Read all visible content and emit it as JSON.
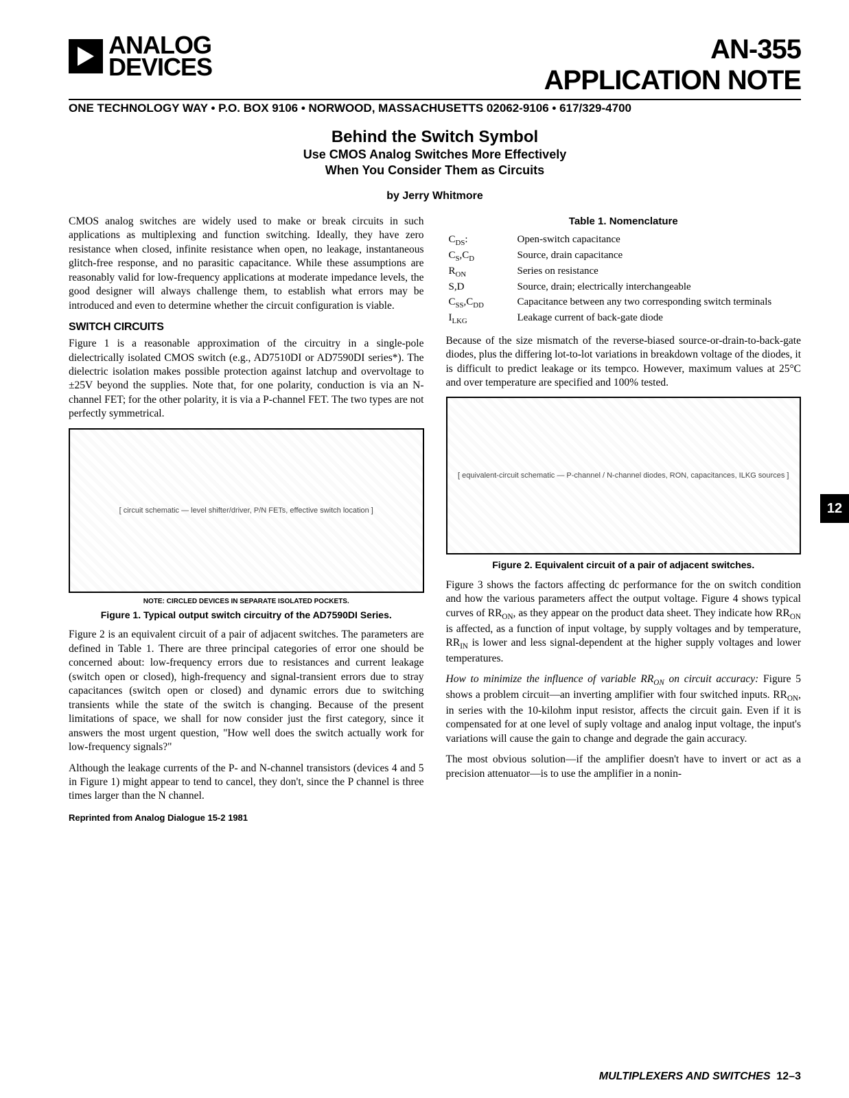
{
  "brand": {
    "line1": "ANALOG",
    "line2": "DEVICES"
  },
  "docid": {
    "an": "AN-355",
    "appnote": "APPLICATION NOTE"
  },
  "address": "ONE TECHNOLOGY WAY • P.O. BOX 9106 • NORWOOD, MASSACHUSETTS 02062-9106 • 617/329-4700",
  "title": {
    "main": "Behind the Switch Symbol",
    "sub1": "Use CMOS Analog Switches More Effectively",
    "sub2": "When You Consider Them as Circuits"
  },
  "byline": "by Jerry Whitmore",
  "left": {
    "p1": "CMOS analog switches are widely used to make or break circuits in such applications as multiplexing and function switching. Ideally, they have zero resistance when closed, infinite resistance when open, no leakage, instantaneous glitch-free response, and no parasitic capacitance. While these assumptions are reasonably valid for low-frequency applications at moderate impedance levels, the good designer will always challenge them, to establish what errors may be introduced and even to determine whether the circuit configuration is viable.",
    "h1": "SWITCH CIRCUITS",
    "p2": "Figure 1 is a reasonable approximation of the circuitry in a single-pole dielectrically isolated CMOS switch (e.g., AD7510DI or AD7590DI series*). The dielectric isolation makes possible protection against latchup and overvoltage to ±25V beyond the supplies. Note that, for one polarity, conduction is via an N-channel FET; for the other polarity, it is via a P-channel FET. The two types are not perfectly symmetrical.",
    "fig1_placeholder": "[ circuit schematic — level shifter/driver, P/N FETs, effective switch location ]",
    "fig1_note": "NOTE: CIRCLED DEVICES IN SEPARATE ISOLATED POCKETS.",
    "fig1_cap": "Figure 1. Typical output switch circuitry of the AD7590DI Series.",
    "p3": "Figure 2 is an equivalent circuit of a pair of adjacent switches. The parameters are defined in Table 1. There are three principal categories of error one should be concerned about: low-frequency errors due to resistances and current leakage (switch open or closed), high-frequency and signal-transient errors due to stray capacitances (switch open or closed) and dynamic errors due to switching transients while the state of the switch is changing. Because of the present limitations of space, we shall for now consider just the first category, since it answers the most urgent question, \"How well does the switch actually work for low-frequency signals?\"",
    "p4": "Although the leakage currents of the P- and N-channel transistors (devices 4 and 5 in Figure 1) might appear to tend to cancel, they don't, since the P channel is three times larger than the N channel.",
    "reprint": "Reprinted from Analog Dialogue 15-2 1981"
  },
  "right": {
    "table_title": "Table 1. Nomenclature",
    "rows": [
      {
        "sym": "C",
        "sub": "DS",
        "suffix": ":",
        "def": "Open-switch capacitance"
      },
      {
        "sym": "C",
        "sub": "S",
        "suffix": ",C",
        "sub2": "D",
        "def": "Source, drain capacitance"
      },
      {
        "sym": "R",
        "sub": "ON",
        "def": "Series on resistance"
      },
      {
        "sym": "S,D",
        "def": "Source, drain; electrically interchangeable"
      },
      {
        "sym": "C",
        "sub": "SS",
        "suffix": ",C",
        "sub2": "DD",
        "def": "Capacitance between any two corresponding switch terminals"
      },
      {
        "sym": "I",
        "sub": "LKG",
        "def": "Leakage current of back-gate diode"
      }
    ],
    "p1": "Because of the size mismatch of the reverse-biased source-or-drain-to-back-gate diodes, plus the differing lot-to-lot variations in breakdown voltage of the diodes, it is difficult to predict leakage or its tempco. However, maximum values at 25°C and over temperature are specified and 100% tested.",
    "fig2_placeholder": "[ equivalent-circuit schematic — P-channel / N-channel diodes, RON, capacitances, ILKG sources ]",
    "fig2_cap": "Figure 2. Equivalent circuit of a pair of adjacent switches.",
    "p2": "Figure 3 shows the factors affecting dc performance for the on switch condition and how the various parameters affect the output voltage. Figure 4 shows typical curves of R",
    "p2b": ", as they appear on the product data sheet. They indicate how R",
    "p2c": " is affected, as a function of input voltage, by supply voltages and by temperature, R",
    "p2d": " is lower and less signal-dependent at the higher supply voltages and lower temperatures.",
    "p3lead": "How to minimize the influence of variable R",
    "p3lead2": " on circuit accuracy:",
    "p3": " Figure 5 shows a problem circuit—an inverting amplifier with four switched inputs. R",
    "p3b": ", in series with the 10-kilohm input resistor, affects the circuit gain. Even if it is compensated for at one level of suply voltage and analog input voltage, the input's variations will cause the gain to change and degrade the gain accuracy.",
    "p4": "The most obvious solution—if the amplifier doesn't have to invert or act as a precision attenuator—is to use the amplifier in a nonin-"
  },
  "tab": "12",
  "footer": {
    "section": "MULTIPLEXERS AND SWITCHES",
    "page": "12–3"
  },
  "subs": {
    "on": "ON",
    "in": "IN"
  }
}
